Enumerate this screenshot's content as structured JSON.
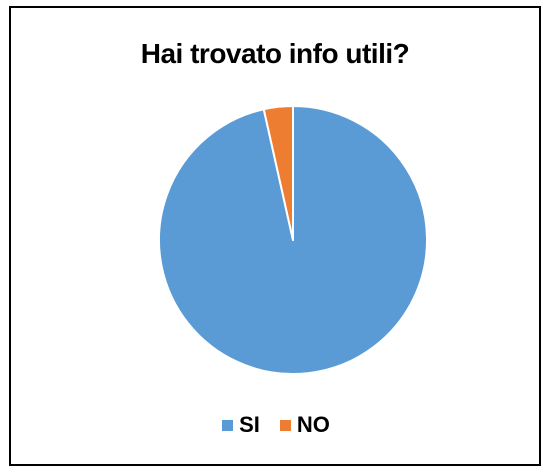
{
  "chart_data": {
    "type": "pie",
    "title": "Hai trovato info utili?",
    "legend_position": "bottom",
    "series": [
      {
        "labels": [
          "SI",
          "NO"
        ],
        "values": [
          96.5,
          3.5
        ],
        "colors": [
          "#5b9bd5",
          "#ed7d31"
        ]
      }
    ]
  }
}
